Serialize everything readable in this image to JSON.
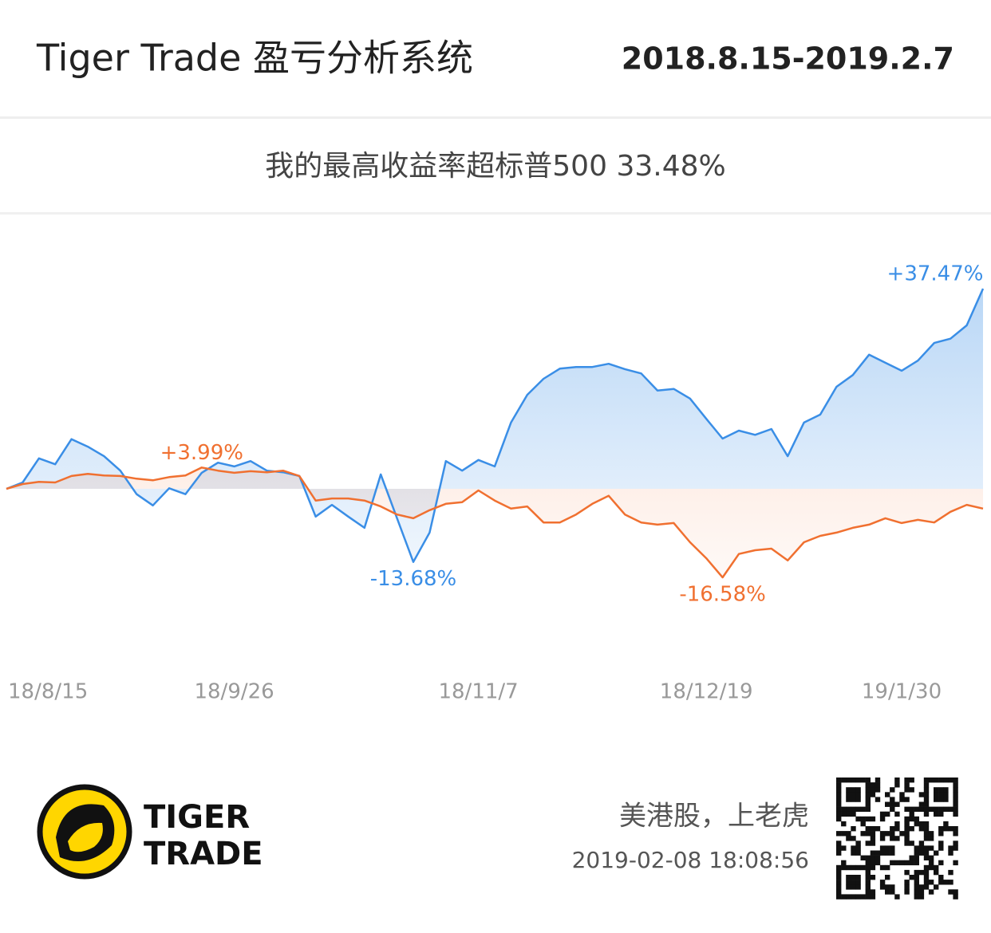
{
  "header": {
    "title": "Tiger Trade 盈亏分析系统",
    "date_range": "2018.8.15-2019.2.7"
  },
  "subtitle": "我的最高收益率超标普500 33.48%",
  "chart_data": {
    "type": "line",
    "categories": [
      "18/8/15",
      null,
      null,
      null,
      null,
      null,
      null,
      null,
      null,
      null,
      null,
      null,
      null,
      null,
      "18/9/26",
      null,
      null,
      null,
      null,
      null,
      null,
      null,
      null,
      null,
      null,
      null,
      null,
      null,
      null,
      "18/11/7",
      null,
      null,
      null,
      null,
      null,
      null,
      null,
      null,
      null,
      null,
      null,
      null,
      null,
      "18/12/19",
      null,
      null,
      null,
      null,
      null,
      null,
      null,
      null,
      null,
      null,
      null,
      "19/1/30",
      null,
      null,
      null,
      null,
      null
    ],
    "ylim": [
      -25,
      45
    ],
    "series": [
      {
        "color": "#3a8ee6",
        "values": [
          0,
          1.2,
          5.7,
          4.6,
          9.3,
          7.9,
          6.1,
          3.4,
          -1.0,
          -3.1,
          0.1,
          -1.0,
          3.0,
          4.9,
          4.2,
          5.2,
          3.4,
          3.1,
          2.4,
          -5.2,
          -3.0,
          -5.2,
          -7.3,
          2.7,
          -5.5,
          -13.68,
          -8.2,
          5.2,
          3.4,
          5.4,
          4.2,
          12.4,
          17.6,
          20.6,
          22.5,
          22.8,
          22.8,
          23.4,
          22.4,
          21.6,
          18.4,
          18.7,
          16.9,
          13.1,
          9.4,
          10.9,
          10.1,
          11.2,
          6.1,
          12.4,
          13.9,
          19.1,
          21.3,
          25.1,
          23.6,
          22.1,
          24.0,
          27.3,
          28.1,
          30.6,
          37.47
        ],
        "value_labels": [
          null,
          null,
          null,
          null,
          null,
          null,
          null,
          null,
          null,
          null,
          null,
          null,
          null,
          null,
          null,
          null,
          null,
          null,
          null,
          null,
          null,
          null,
          null,
          null,
          null,
          "-13.68%",
          null,
          null,
          null,
          null,
          null,
          null,
          null,
          null,
          null,
          null,
          null,
          null,
          null,
          null,
          null,
          null,
          null,
          null,
          null,
          null,
          null,
          null,
          null,
          null,
          null,
          null,
          null,
          null,
          null,
          null,
          null,
          null,
          null,
          null,
          "+37.47%"
        ]
      },
      {
        "color": "#f07030",
        "values": [
          0,
          0.9,
          1.3,
          1.2,
          2.4,
          2.8,
          2.5,
          2.4,
          1.9,
          1.6,
          2.2,
          2.5,
          3.99,
          3.4,
          3.0,
          3.3,
          3.1,
          3.4,
          2.4,
          -2.2,
          -1.8,
          -1.8,
          -2.2,
          -3.3,
          -4.8,
          -5.5,
          -4.0,
          -2.8,
          -2.5,
          -0.3,
          -2.2,
          -3.7,
          -3.3,
          -6.3,
          -6.3,
          -4.8,
          -2.8,
          -1.3,
          -4.8,
          -6.3,
          -6.7,
          -6.4,
          -10.0,
          -13.0,
          -16.58,
          -12.2,
          -11.5,
          -11.2,
          -13.4,
          -10.0,
          -8.8,
          -8.2,
          -7.3,
          -6.7,
          -5.5,
          -6.4,
          -5.8,
          -6.3,
          -4.3,
          -3.0,
          -3.7
        ],
        "value_labels": [
          null,
          null,
          null,
          null,
          null,
          null,
          null,
          null,
          null,
          null,
          null,
          null,
          "+3.99%",
          null,
          null,
          null,
          null,
          null,
          null,
          null,
          null,
          null,
          null,
          null,
          null,
          null,
          null,
          null,
          null,
          null,
          null,
          null,
          null,
          null,
          null,
          null,
          null,
          null,
          null,
          null,
          null,
          null,
          null,
          null,
          "-16.58%",
          null,
          null,
          null,
          null,
          null,
          null,
          null,
          null,
          null,
          null,
          null,
          null,
          null,
          null,
          null,
          null
        ]
      }
    ]
  },
  "footer": {
    "logo_top": "TIGER",
    "logo_bottom": "TRADE",
    "slogan": "美港股，上老虎",
    "timestamp": "2019-02-08 18:08:56"
  }
}
